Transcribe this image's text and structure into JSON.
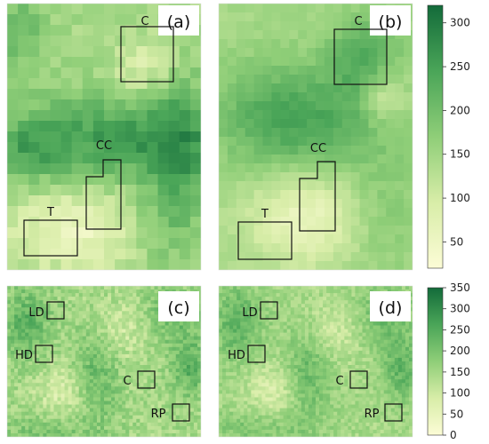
{
  "panels": [
    {
      "id": "a",
      "label": "(a)",
      "regions": [
        {
          "label": "C",
          "shape": "rect"
        },
        {
          "label": "CC",
          "shape": "notched"
        },
        {
          "label": "T",
          "shape": "rect"
        }
      ]
    },
    {
      "id": "b",
      "label": "(b)",
      "regions": [
        {
          "label": "C",
          "shape": "rect"
        },
        {
          "label": "CC",
          "shape": "notched"
        },
        {
          "label": "T",
          "shape": "rect"
        }
      ]
    },
    {
      "id": "c",
      "label": "(c)",
      "regions": [
        {
          "label": "LD",
          "shape": "rect"
        },
        {
          "label": "HD",
          "shape": "rect"
        },
        {
          "label": "C",
          "shape": "rect"
        },
        {
          "label": "RP",
          "shape": "rect"
        }
      ]
    },
    {
      "id": "d",
      "label": "(d)",
      "regions": [
        {
          "label": "LD",
          "shape": "rect"
        },
        {
          "label": "HD",
          "shape": "rect"
        },
        {
          "label": "C",
          "shape": "rect"
        },
        {
          "label": "RP",
          "shape": "rect"
        }
      ]
    }
  ],
  "colorbars": [
    {
      "ticks": [
        "300",
        "250",
        "200",
        "150",
        "100",
        "50"
      ],
      "tick_values": [
        300,
        250,
        200,
        150,
        100,
        50
      ],
      "range": [
        20,
        320
      ]
    },
    {
      "ticks": [
        "350",
        "300",
        "250",
        "200",
        "150",
        "100",
        "50",
        "0"
      ],
      "tick_values": [
        350,
        300,
        250,
        200,
        150,
        100,
        50,
        0
      ],
      "range": [
        0,
        350
      ]
    }
  ],
  "colors": {
    "low": "#fcfcd6",
    "mid_low": "#d8eda8",
    "mid": "#8fce78",
    "mid_high": "#4aa558",
    "high": "#136b3a",
    "outline": "#111111"
  }
}
